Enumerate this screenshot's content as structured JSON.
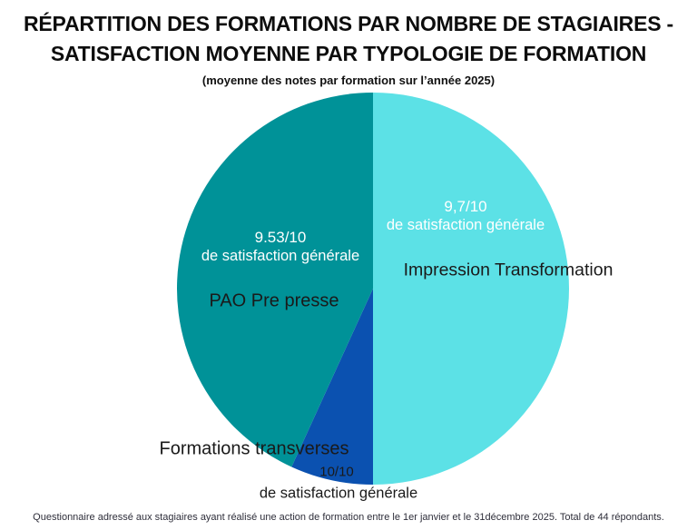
{
  "header": {
    "title_line1": "RÉPARTITION DES FORMATIONS PAR NOMBRE DE STAGIAIRES -",
    "title_line2": "SATISFACTION MOYENNE PAR TYPOLOGIE DE FORMATION",
    "subtitle": "(moyenne des notes par formation sur l’année 2025)"
  },
  "chart_data": {
    "type": "pie",
    "title": "RÉPARTITION DES FORMATIONS PAR NOMBRE DE STAGIAIRES - SATISFACTION MOYENNE PAR TYPOLOGIE DE FORMATION",
    "subtitle": "(moyenne des notes par formation sur l’année 2025)",
    "total_respondents": 44,
    "legend_position": "labels-on-chart",
    "start_angle_deg": 0,
    "direction": "clockwise",
    "slices": [
      {
        "label": "Impression Transformation",
        "value": 22,
        "share_pct": 50.0,
        "satisfaction": "9,7/10",
        "satisfaction_caption": "de satisfaction générale",
        "color": "#5CE1E6"
      },
      {
        "label": "Formations transverses",
        "value": 3,
        "share_pct": 6.8,
        "satisfaction": "10/10",
        "satisfaction_caption": "de satisfaction générale",
        "color": "#0B51B0"
      },
      {
        "label": "PAO Pre presse",
        "value": 19,
        "share_pct": 43.2,
        "satisfaction": "9.53/10",
        "satisfaction_caption": "de satisfaction générale",
        "color": "#009298"
      }
    ]
  },
  "footer": {
    "note": "Questionnaire adressé aux stagiaires ayant réalisé une action de formation entre le 1er janvier et le 31décembre 2025. Total de 44 répondants."
  }
}
